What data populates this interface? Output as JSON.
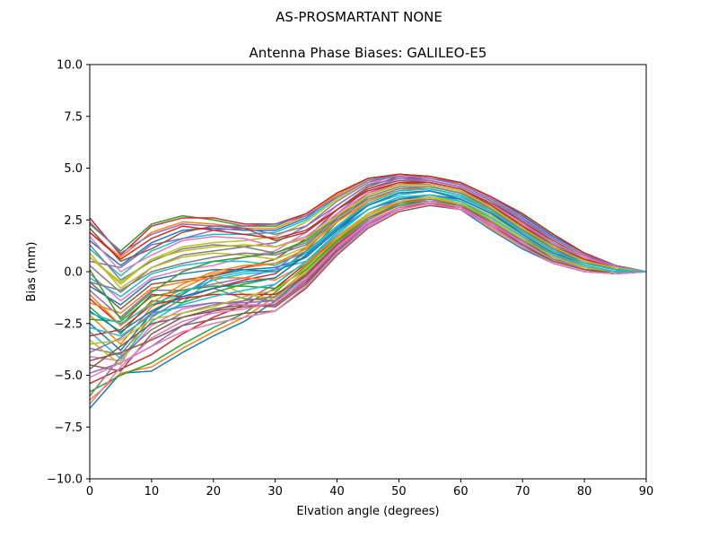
{
  "chart_data": {
    "type": "line",
    "suptitle": "AS-PROSMARTANT  NONE",
    "title": "Antenna Phase Biases: GALILEO-E5",
    "xlabel": "Elvation angle (degrees)",
    "ylabel": "Bias (mm)",
    "xlim": [
      0,
      90
    ],
    "ylim": [
      -10,
      10
    ],
    "xticks": [
      0,
      10,
      20,
      30,
      40,
      50,
      60,
      70,
      80,
      90
    ],
    "yticks": [
      -10.0,
      -7.5,
      -5.0,
      -2.5,
      0.0,
      2.5,
      5.0,
      7.5,
      10.0
    ],
    "x": [
      0,
      5,
      10,
      15,
      20,
      25,
      30,
      35,
      40,
      45,
      50,
      55,
      60,
      65,
      70,
      75,
      80,
      85,
      90
    ],
    "legend": "none",
    "grid": false,
    "colors": [
      "#1f77b4",
      "#ff7f0e",
      "#2ca02c",
      "#d62728",
      "#9467bd",
      "#8c564b",
      "#e377c2",
      "#7f7f7f",
      "#bcbd22",
      "#17becf"
    ],
    "series": [
      {
        "values": [
          -6.6,
          -4.9,
          -4.8,
          -3.9,
          -3.1,
          -2.4,
          -1.4,
          -0.1,
          1.2,
          2.4,
          3.1,
          3.3,
          3.0,
          2.0,
          1.1,
          0.4,
          0.0,
          -0.1,
          0.0
        ]
      },
      {
        "values": [
          -6.2,
          -4.9,
          -4.6,
          -3.7,
          -2.9,
          -2.2,
          -1.2,
          0.1,
          1.4,
          2.5,
          3.2,
          3.4,
          3.1,
          2.1,
          1.2,
          0.4,
          0.0,
          -0.1,
          0.0
        ]
      },
      {
        "values": [
          -5.8,
          -5.0,
          -4.4,
          -3.5,
          -2.7,
          -2.0,
          -1.0,
          0.3,
          1.5,
          2.6,
          3.3,
          3.4,
          3.2,
          2.2,
          1.2,
          0.5,
          0.1,
          -0.1,
          0.0
        ]
      },
      {
        "values": [
          -5.4,
          -4.7,
          -4.0,
          -3.0,
          -2.2,
          -1.6,
          -0.8,
          0.4,
          1.6,
          2.7,
          3.4,
          3.5,
          3.2,
          2.3,
          1.3,
          0.5,
          0.1,
          -0.1,
          0.0
        ]
      },
      {
        "values": [
          -4.9,
          -4.4,
          -3.6,
          -2.6,
          -1.9,
          -1.4,
          -0.6,
          0.5,
          1.7,
          2.8,
          3.5,
          3.6,
          3.3,
          2.4,
          1.4,
          0.6,
          0.1,
          0.0,
          0.0
        ]
      },
      {
        "values": [
          -4.5,
          -4.8,
          -3.0,
          -2.2,
          -1.8,
          -1.6,
          -1.7,
          -0.6,
          1.0,
          2.2,
          3.0,
          3.3,
          3.1,
          2.4,
          1.5,
          0.7,
          0.2,
          0.0,
          0.0
        ]
      },
      {
        "values": [
          -4.1,
          -4.3,
          -2.6,
          -1.8,
          -1.5,
          -1.6,
          -1.6,
          -0.4,
          1.1,
          2.3,
          3.1,
          3.4,
          3.2,
          2.5,
          1.6,
          0.8,
          0.2,
          0.0,
          0.0
        ]
      },
      {
        "values": [
          -3.7,
          -4.0,
          -2.2,
          -1.3,
          -0.8,
          -1.3,
          -1.4,
          -0.2,
          1.3,
          2.5,
          3.3,
          3.5,
          3.3,
          2.6,
          1.7,
          0.8,
          0.3,
          0.0,
          0.0
        ]
      },
      {
        "values": [
          -3.3,
          -4.5,
          -1.9,
          -1.0,
          -0.4,
          -1.1,
          -1.3,
          0.0,
          1.5,
          2.7,
          3.4,
          3.6,
          3.4,
          2.7,
          1.8,
          0.9,
          0.3,
          0.0,
          0.0
        ]
      },
      {
        "values": [
          -2.9,
          -4.2,
          -2.4,
          -1.5,
          -0.3,
          0.0,
          0.1,
          0.5,
          1.8,
          3.0,
          3.6,
          3.7,
          3.5,
          2.8,
          1.9,
          1.0,
          0.4,
          0.1,
          0.0
        ]
      },
      {
        "values": [
          -2.5,
          -3.8,
          -2.0,
          -1.1,
          -0.2,
          0.1,
          0.2,
          0.7,
          2.0,
          3.2,
          3.8,
          3.9,
          3.6,
          2.9,
          2.0,
          1.1,
          0.4,
          0.1,
          0.0
        ]
      },
      {
        "values": [
          -2.1,
          -3.5,
          -1.7,
          -0.8,
          -0.1,
          0.2,
          0.4,
          0.9,
          2.2,
          3.4,
          4.0,
          4.0,
          3.7,
          3.0,
          2.1,
          1.2,
          0.5,
          0.1,
          0.0
        ]
      },
      {
        "values": [
          -1.7,
          -3.0,
          -1.4,
          -1.5,
          -1.0,
          -0.6,
          -0.3,
          0.8,
          2.4,
          3.6,
          4.1,
          4.1,
          3.8,
          3.1,
          2.2,
          1.2,
          0.5,
          0.1,
          0.0
        ]
      },
      {
        "values": [
          -1.3,
          -2.6,
          -1.1,
          -1.2,
          -0.8,
          -0.4,
          -0.1,
          1.0,
          2.6,
          3.8,
          4.3,
          4.2,
          3.9,
          3.2,
          2.3,
          1.3,
          0.6,
          0.2,
          0.0
        ]
      },
      {
        "values": [
          -0.9,
          -2.2,
          -0.9,
          -0.9,
          -0.6,
          -0.3,
          0.1,
          1.2,
          2.8,
          4.0,
          4.5,
          4.3,
          4.0,
          3.3,
          2.4,
          1.4,
          0.6,
          0.2,
          0.0
        ]
      },
      {
        "values": [
          -0.5,
          -1.8,
          -0.6,
          -0.4,
          -0.2,
          0.2,
          0.6,
          1.6,
          3.0,
          4.1,
          4.6,
          4.4,
          4.1,
          3.4,
          2.4,
          1.4,
          0.7,
          0.2,
          0.0
        ]
      },
      {
        "values": [
          -0.1,
          -1.4,
          -0.3,
          0.1,
          0.3,
          0.7,
          1.0,
          1.9,
          3.2,
          4.2,
          4.7,
          4.5,
          4.2,
          3.5,
          2.5,
          1.5,
          0.7,
          0.2,
          0.0
        ]
      },
      {
        "values": [
          0.3,
          -1.0,
          0.2,
          0.8,
          1.0,
          1.2,
          1.4,
          2.2,
          3.4,
          4.3,
          4.7,
          4.6,
          4.2,
          3.5,
          2.6,
          1.6,
          0.8,
          0.3,
          0.0
        ]
      },
      {
        "values": [
          0.7,
          -0.6,
          0.6,
          1.2,
          1.4,
          1.5,
          1.7,
          2.4,
          3.5,
          4.4,
          4.7,
          4.6,
          4.3,
          3.6,
          2.7,
          1.7,
          0.9,
          0.3,
          0.0
        ]
      },
      {
        "values": [
          1.1,
          -0.2,
          1.0,
          1.6,
          1.8,
          1.8,
          1.9,
          2.5,
          3.6,
          4.4,
          4.7,
          4.6,
          4.3,
          3.6,
          2.7,
          1.7,
          0.9,
          0.3,
          0.0
        ]
      },
      {
        "values": [
          1.5,
          0.3,
          1.4,
          2.0,
          2.1,
          2.0,
          2.0,
          2.6,
          3.7,
          4.5,
          4.7,
          4.6,
          4.3,
          3.6,
          2.7,
          1.7,
          0.9,
          0.3,
          0.0
        ]
      },
      {
        "values": [
          1.9,
          0.7,
          1.9,
          2.4,
          2.3,
          2.1,
          2.1,
          2.7,
          3.7,
          4.5,
          4.7,
          4.6,
          4.3,
          3.6,
          2.8,
          1.8,
          0.9,
          0.3,
          0.0
        ]
      },
      {
        "values": [
          2.3,
          1.0,
          2.3,
          2.7,
          2.5,
          2.2,
          2.2,
          2.8,
          3.8,
          4.5,
          4.7,
          4.6,
          4.3,
          3.6,
          2.8,
          1.8,
          0.9,
          0.3,
          0.0
        ]
      },
      {
        "values": [
          2.6,
          0.8,
          2.2,
          2.6,
          2.6,
          2.3,
          2.3,
          2.8,
          3.8,
          4.5,
          4.7,
          4.6,
          4.3,
          3.6,
          2.8,
          1.8,
          0.9,
          0.3,
          0.0
        ]
      },
      {
        "values": [
          0.5,
          0.2,
          1.3,
          1.6,
          2.0,
          2.1,
          1.8,
          2.2,
          3.2,
          4.2,
          4.5,
          4.4,
          4.1,
          3.4,
          2.5,
          1.6,
          0.8,
          0.2,
          0.0
        ]
      },
      {
        "values": [
          2.1,
          0.5,
          1.1,
          1.9,
          2.2,
          2.1,
          1.5,
          1.9,
          3.0,
          4.0,
          4.4,
          4.3,
          4.0,
          3.3,
          2.4,
          1.5,
          0.7,
          0.2,
          0.0
        ]
      },
      {
        "values": [
          1.7,
          0.0,
          0.8,
          1.5,
          1.7,
          1.6,
          1.2,
          1.7,
          2.8,
          3.8,
          4.2,
          4.2,
          3.9,
          3.2,
          2.3,
          1.4,
          0.7,
          0.2,
          0.0
        ]
      },
      {
        "values": [
          1.3,
          -0.4,
          0.5,
          1.1,
          1.3,
          1.2,
          0.9,
          1.4,
          2.6,
          3.6,
          4.1,
          4.1,
          3.8,
          3.1,
          2.2,
          1.3,
          0.6,
          0.1,
          0.0
        ]
      },
      {
        "values": [
          0.9,
          -0.8,
          0.2,
          0.7,
          0.9,
          0.8,
          0.6,
          1.2,
          2.4,
          3.4,
          3.9,
          4.0,
          3.7,
          3.0,
          2.1,
          1.2,
          0.6,
          0.1,
          0.0
        ]
      },
      {
        "values": [
          -0.3,
          -1.2,
          -0.1,
          0.3,
          0.5,
          0.5,
          0.3,
          1.0,
          2.2,
          3.2,
          3.7,
          3.9,
          3.6,
          2.9,
          2.0,
          1.1,
          0.5,
          0.1,
          0.0
        ]
      },
      {
        "values": [
          -0.7,
          -1.6,
          -0.4,
          -0.1,
          0.1,
          0.1,
          0.0,
          0.7,
          2.0,
          3.0,
          3.5,
          3.7,
          3.5,
          2.8,
          1.9,
          1.0,
          0.4,
          0.1,
          0.0
        ]
      },
      {
        "values": [
          -1.5,
          -2.0,
          -0.8,
          -0.5,
          -0.3,
          -0.3,
          -0.4,
          0.4,
          1.7,
          2.8,
          3.3,
          3.5,
          3.3,
          2.6,
          1.7,
          0.9,
          0.3,
          0.0,
          0.0
        ]
      },
      {
        "values": [
          -2.3,
          -2.4,
          -1.2,
          -0.9,
          -0.7,
          -0.7,
          -0.8,
          0.1,
          1.5,
          2.6,
          3.2,
          3.4,
          3.2,
          2.5,
          1.6,
          0.8,
          0.3,
          0.0,
          0.0
        ]
      },
      {
        "values": [
          -3.1,
          -2.8,
          -1.6,
          -1.3,
          -1.1,
          -1.1,
          -1.1,
          -0.2,
          1.3,
          2.4,
          3.1,
          3.3,
          3.1,
          2.4,
          1.5,
          0.7,
          0.2,
          0.0,
          0.0
        ]
      },
      {
        "values": [
          -3.9,
          -3.2,
          -2.0,
          -1.7,
          -1.5,
          -1.5,
          -1.4,
          -0.4,
          1.1,
          2.3,
          3.0,
          3.3,
          3.0,
          2.3,
          1.4,
          0.6,
          0.2,
          0.0,
          0.0
        ]
      },
      {
        "values": [
          -4.7,
          -3.6,
          -2.5,
          -2.2,
          -1.9,
          -1.7,
          -1.6,
          -0.5,
          1.0,
          2.2,
          3.0,
          3.3,
          3.0,
          2.2,
          1.3,
          0.5,
          0.1,
          0.0,
          0.0
        ]
      },
      {
        "values": [
          -6.4,
          -4.6,
          -3.2,
          -2.4,
          -2.0,
          -1.8,
          -1.5,
          -0.3,
          1.2,
          2.4,
          3.1,
          3.4,
          3.1,
          2.3,
          1.4,
          0.6,
          0.1,
          -0.1,
          0.0
        ]
      },
      {
        "values": [
          -6.0,
          -4.1,
          -2.8,
          -2.0,
          -1.6,
          -1.4,
          -1.2,
          -0.1,
          1.4,
          2.6,
          3.3,
          3.5,
          3.2,
          2.4,
          1.5,
          0.6,
          0.2,
          0.0,
          0.0
        ]
      },
      {
        "values": [
          -3.5,
          -3.3,
          -2.3,
          -2.0,
          -1.7,
          -1.2,
          -0.9,
          0.2,
          1.6,
          2.8,
          3.4,
          3.6,
          3.3,
          2.5,
          1.6,
          0.7,
          0.2,
          0.0,
          0.0
        ]
      },
      {
        "values": [
          -2.7,
          -3.1,
          -2.1,
          -1.6,
          -1.2,
          -0.9,
          -0.6,
          0.5,
          1.9,
          3.0,
          3.6,
          3.7,
          3.4,
          2.6,
          1.7,
          0.8,
          0.3,
          0.0,
          0.0
        ]
      },
      {
        "values": [
          -1.9,
          -2.9,
          -1.9,
          -1.2,
          -0.8,
          -0.5,
          -0.3,
          0.8,
          2.1,
          3.2,
          3.8,
          3.9,
          3.5,
          2.8,
          1.8,
          0.9,
          0.4,
          0.1,
          0.0
        ]
      },
      {
        "values": [
          -1.1,
          -2.6,
          -1.5,
          -0.6,
          0.0,
          0.3,
          0.4,
          1.1,
          2.4,
          3.4,
          4.0,
          4.0,
          3.7,
          2.9,
          1.9,
          1.0,
          0.4,
          0.1,
          0.0
        ]
      },
      {
        "values": [
          0.1,
          -2.3,
          -1.0,
          0.0,
          0.5,
          0.7,
          0.9,
          1.5,
          2.7,
          3.7,
          4.2,
          4.2,
          3.9,
          3.1,
          2.1,
          1.1,
          0.5,
          0.1,
          0.0
        ]
      },
      {
        "values": [
          1.9,
          0.6,
          1.6,
          2.2,
          2.0,
          1.8,
          1.6,
          2.0,
          3.0,
          3.9,
          4.3,
          4.3,
          4.0,
          3.2,
          2.2,
          1.2,
          0.6,
          0.2,
          0.0
        ]
      },
      {
        "values": [
          2.4,
          0.9,
          1.8,
          2.3,
          2.2,
          2.2,
          2.3,
          2.7,
          3.6,
          4.4,
          4.6,
          4.5,
          4.2,
          3.5,
          2.6,
          1.6,
          0.8,
          0.3,
          0.0
        ]
      },
      {
        "values": [
          -4.3,
          -3.9,
          -3.3,
          -2.6,
          -2.3,
          -2.0,
          -1.9,
          -0.8,
          0.8,
          2.1,
          2.9,
          3.2,
          3.0,
          2.2,
          1.3,
          0.5,
          0.1,
          -0.1,
          0.0
        ]
      },
      {
        "values": [
          -5.1,
          -4.4,
          -3.6,
          -2.9,
          -2.5,
          -2.2,
          -1.9,
          -0.7,
          0.9,
          2.2,
          3.0,
          3.3,
          3.0,
          2.2,
          1.2,
          0.4,
          0.0,
          -0.1,
          0.0
        ]
      },
      {
        "values": [
          -0.5,
          -0.9,
          0.0,
          0.4,
          0.7,
          0.9,
          0.8,
          1.3,
          2.5,
          3.5,
          4.0,
          4.1,
          3.8,
          3.0,
          2.0,
          1.1,
          0.5,
          0.1,
          0.0
        ]
      },
      {
        "values": [
          0.7,
          -0.5,
          0.6,
          1.0,
          1.2,
          1.3,
          1.2,
          1.6,
          2.7,
          3.7,
          4.2,
          4.2,
          3.9,
          3.1,
          2.1,
          1.2,
          0.5,
          0.2,
          0.0
        ]
      },
      {
        "values": [
          -2.0,
          -2.5,
          -1.6,
          -1.0,
          -0.4,
          -0.1,
          0.0,
          0.9,
          2.2,
          3.3,
          3.9,
          4.0,
          3.7,
          2.9,
          1.9,
          1.0,
          0.4,
          0.1,
          0.0
        ]
      }
    ]
  }
}
